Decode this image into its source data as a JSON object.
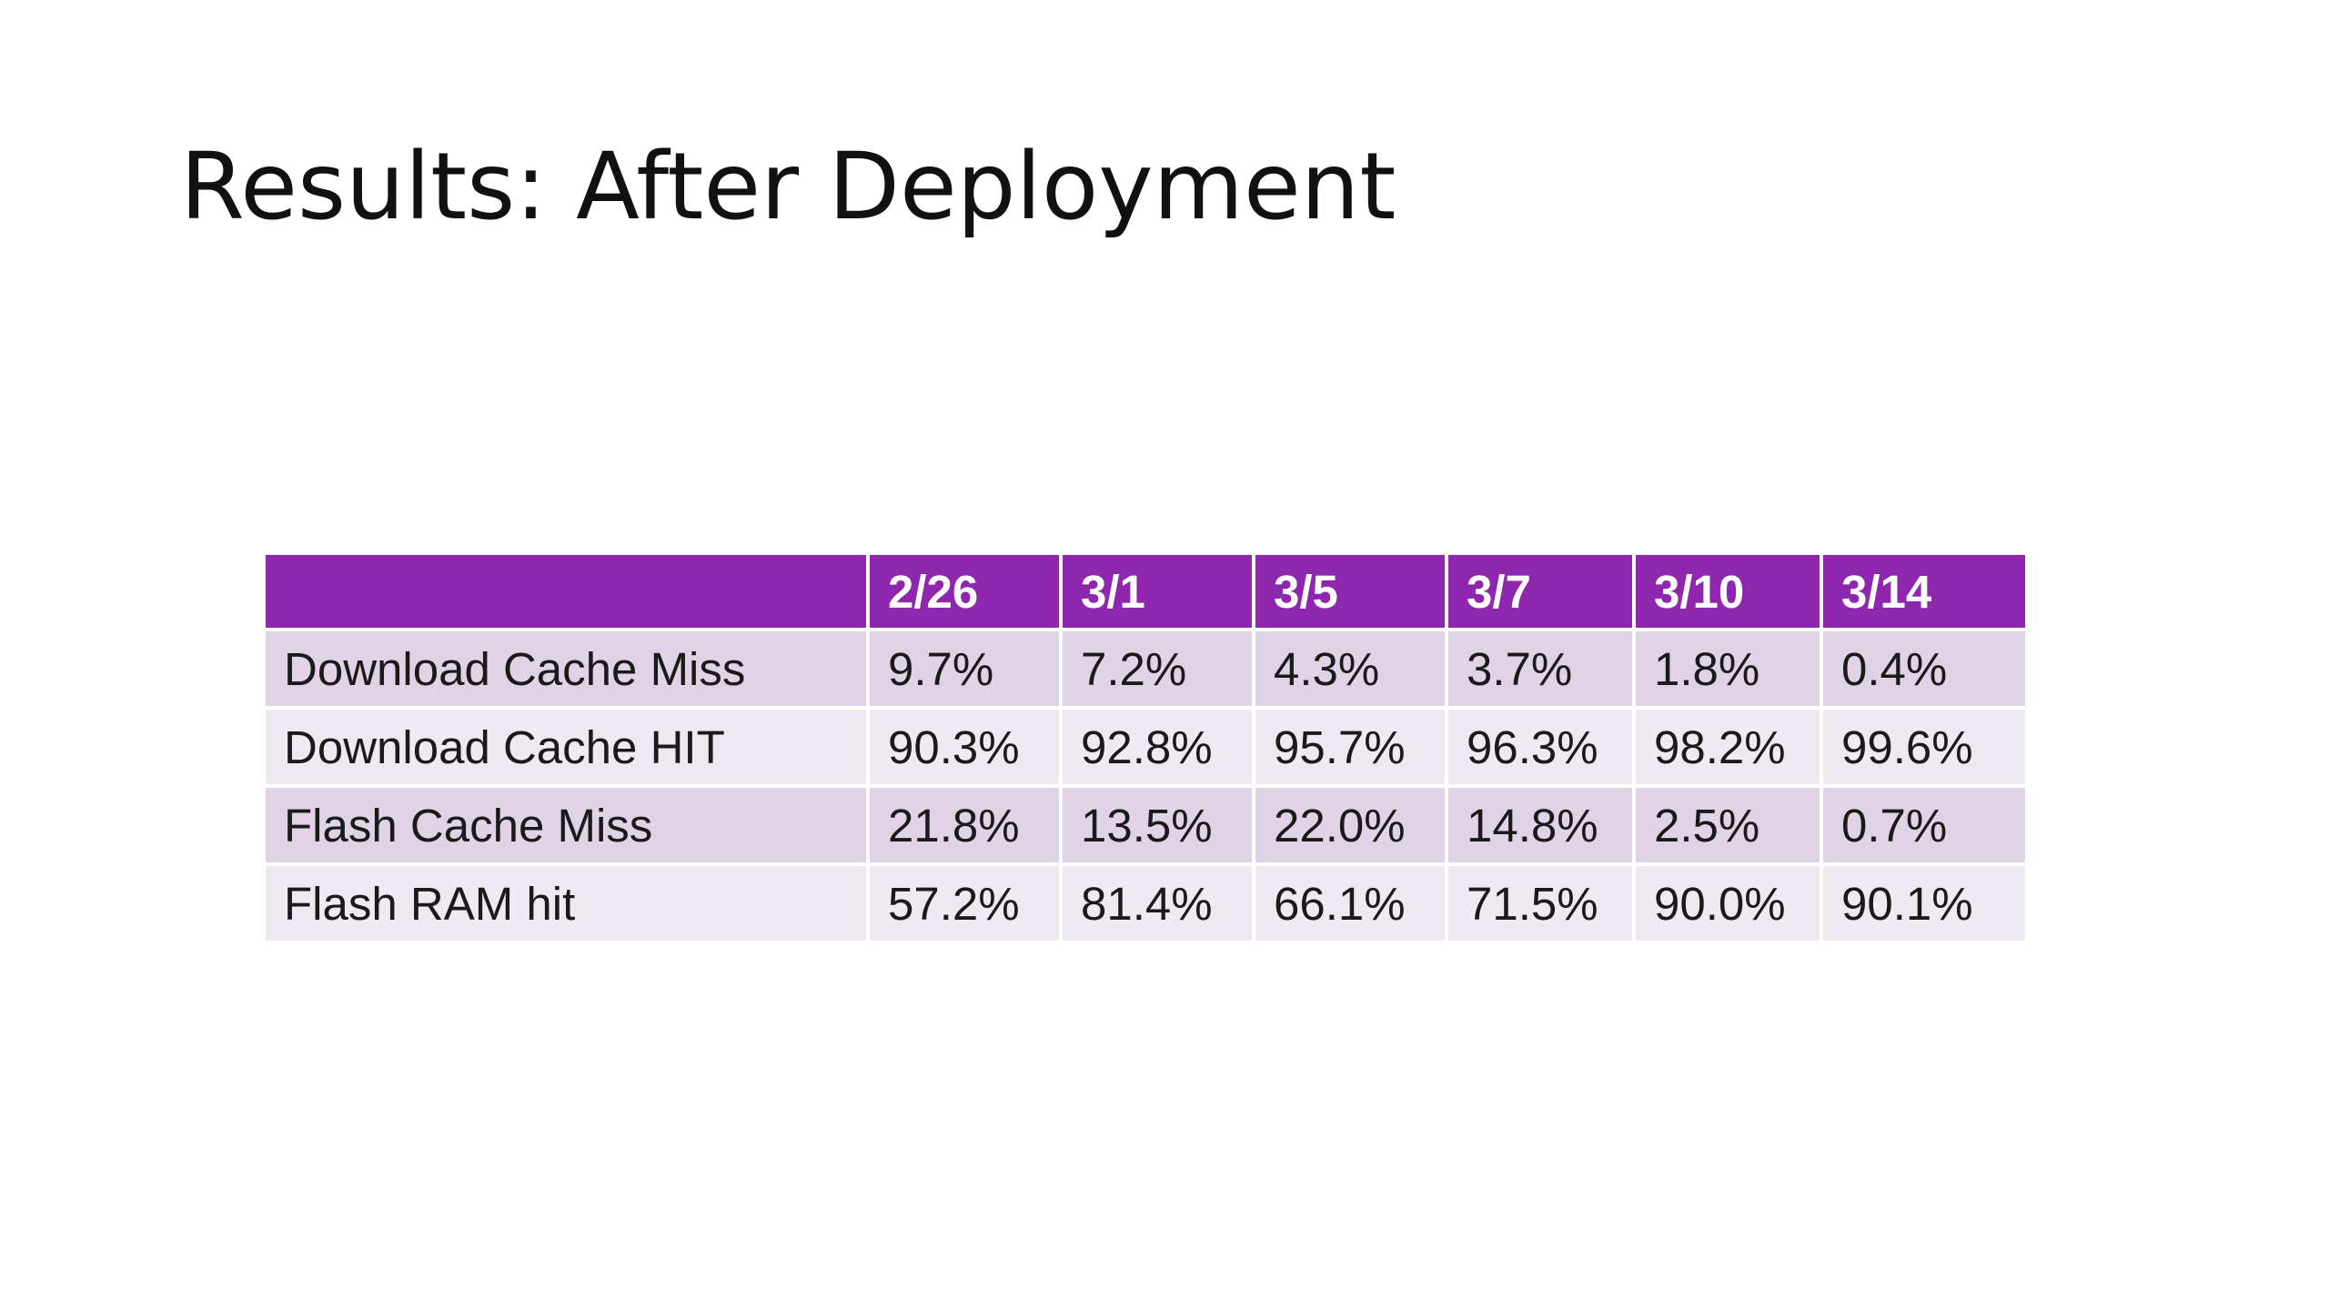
{
  "slide": {
    "title": "Results: After Deployment"
  },
  "table": {
    "headers": [
      "",
      "2/26",
      "3/1",
      "3/5",
      "3/7",
      "3/10",
      "3/14"
    ],
    "rows": [
      {
        "label": "Download Cache Miss",
        "values": [
          "9.7%",
          "7.2%",
          "4.3%",
          "3.7%",
          "1.8%",
          "0.4%"
        ]
      },
      {
        "label": "Download Cache HIT",
        "values": [
          "90.3%",
          "92.8%",
          "95.7%",
          "96.3%",
          "98.2%",
          "99.6%"
        ]
      },
      {
        "label": "Flash Cache Miss",
        "values": [
          "21.8%",
          "13.5%",
          "22.0%",
          "14.8%",
          "2.5%",
          "0.7%"
        ]
      },
      {
        "label": "Flash RAM hit",
        "values": [
          "57.2%",
          "81.4%",
          "66.1%",
          "71.5%",
          "90.0%",
          "90.1%"
        ]
      }
    ]
  },
  "colors": {
    "header_bg": "#8e27ad",
    "row_odd_bg": "#e0d3e5",
    "row_even_bg": "#efe9f1"
  }
}
